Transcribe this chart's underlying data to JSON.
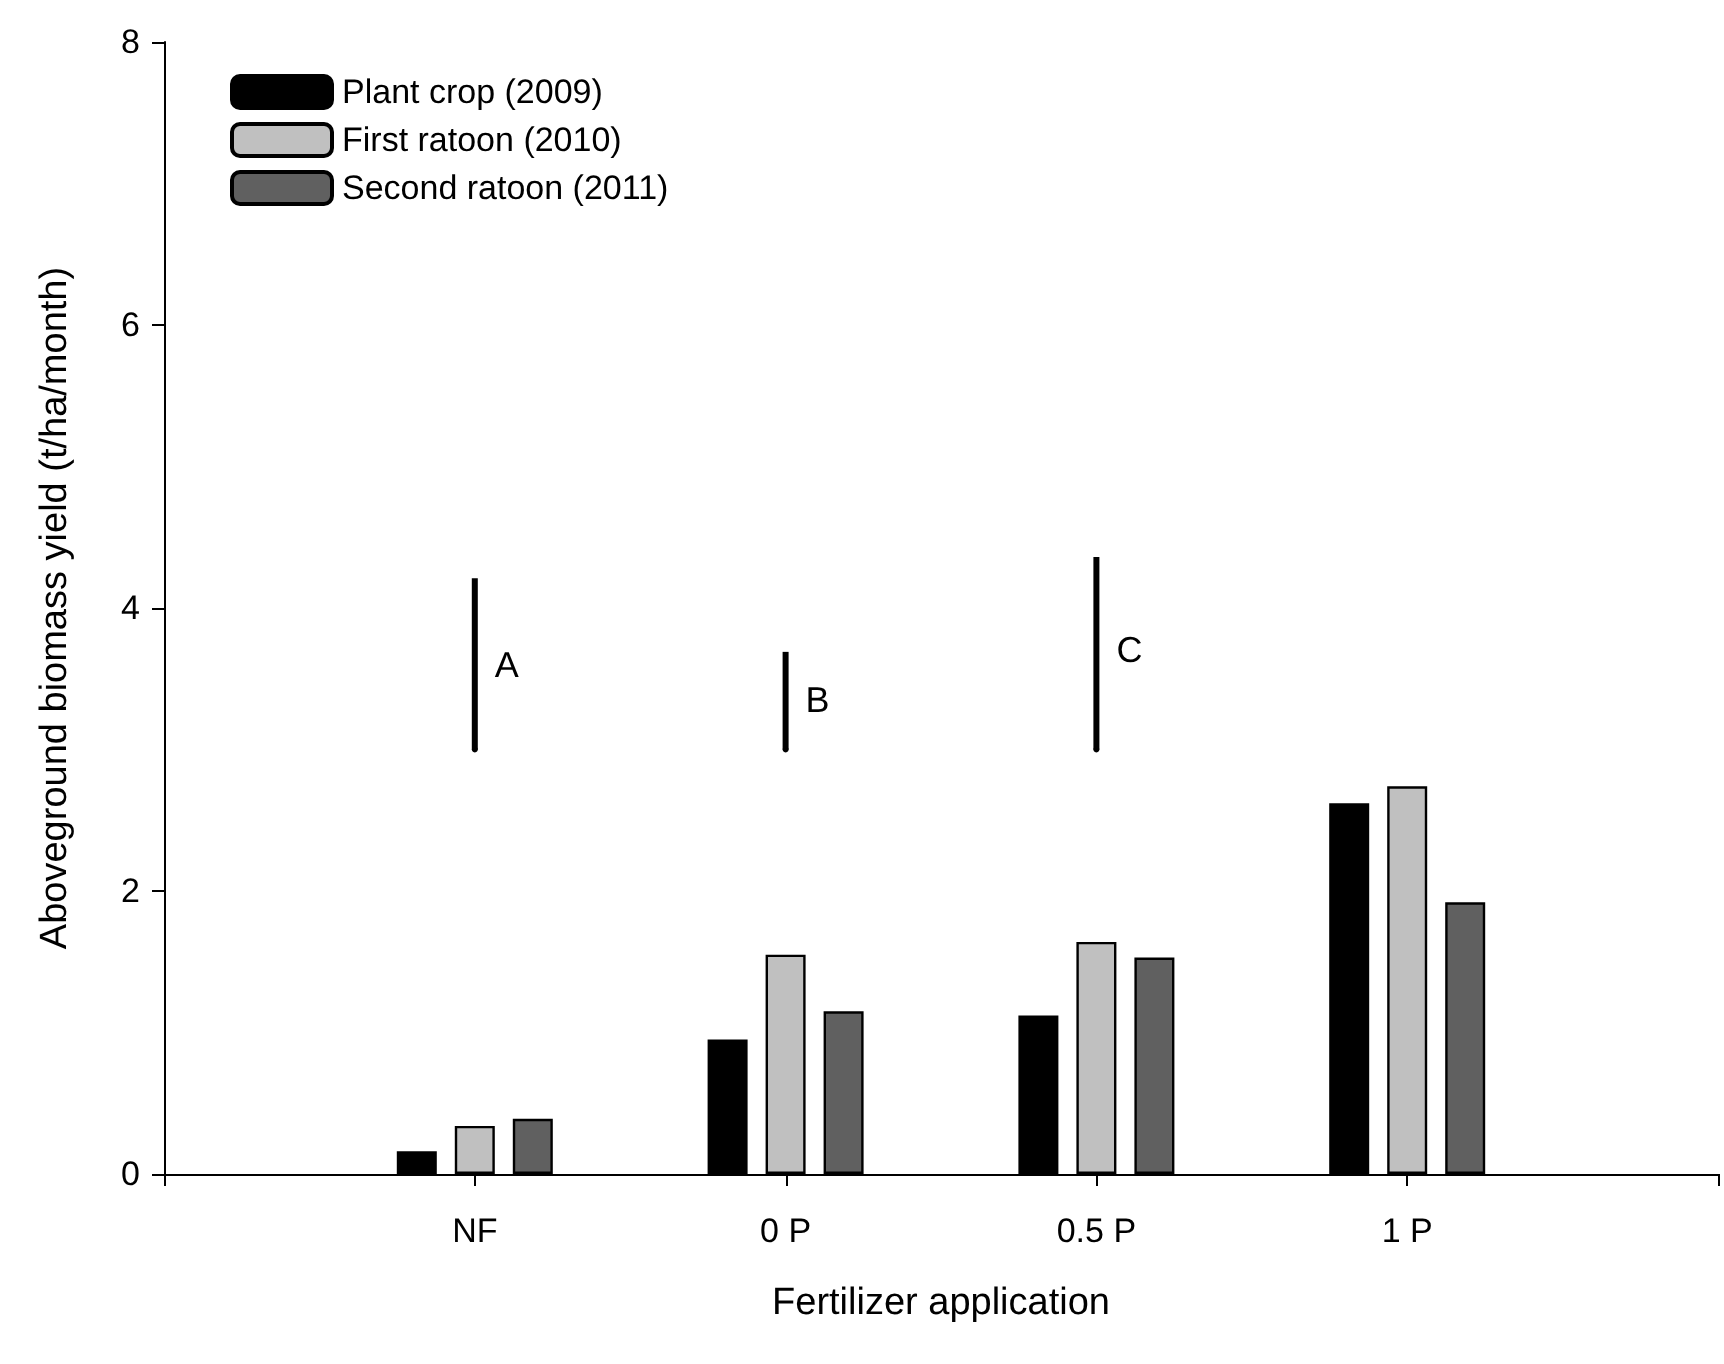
{
  "chart_data": {
    "type": "bar",
    "xlabel": "Fertilizer application",
    "ylabel": "Aboveground biomass yield (t/ha/month)",
    "categories": [
      "NF",
      "0 P",
      "0.5 P",
      "1 P"
    ],
    "series": [
      {
        "name": "Plant crop (2009)",
        "color": "#000000",
        "values": [
          0.16,
          0.95,
          1.12,
          2.62
        ]
      },
      {
        "name": "First ratoon (2010)",
        "color": "#c0c0c0",
        "values": [
          0.34,
          1.55,
          1.64,
          2.74
        ]
      },
      {
        "name": "Second ratoon (2011)",
        "color": "#606060",
        "values": [
          0.39,
          1.15,
          1.53,
          1.92
        ]
      },
      {
        "type": "scatter",
        "marker": "none",
        "color": "#000000",
        "x": [
          "NF",
          "0 P",
          "0.5 P"
        ],
        "values": [
          3.0,
          3.0,
          3.0
        ],
        "errors": [
          [
            3.0,
            4.21
          ],
          [
            3.0,
            3.69
          ],
          [
            3.0,
            4.36
          ]
        ]
      }
    ],
    "annotations": [
      {
        "text": "A",
        "x": "NF",
        "y": 3.6
      },
      {
        "text": "B",
        "x": "0 P",
        "y": 3.35
      },
      {
        "text": "C",
        "x": "0.5 P",
        "y": 3.7
      }
    ],
    "ylim": [
      0,
      8
    ],
    "yticks": [
      0,
      2,
      4,
      6,
      8
    ],
    "grid": false,
    "legend": "top left"
  }
}
